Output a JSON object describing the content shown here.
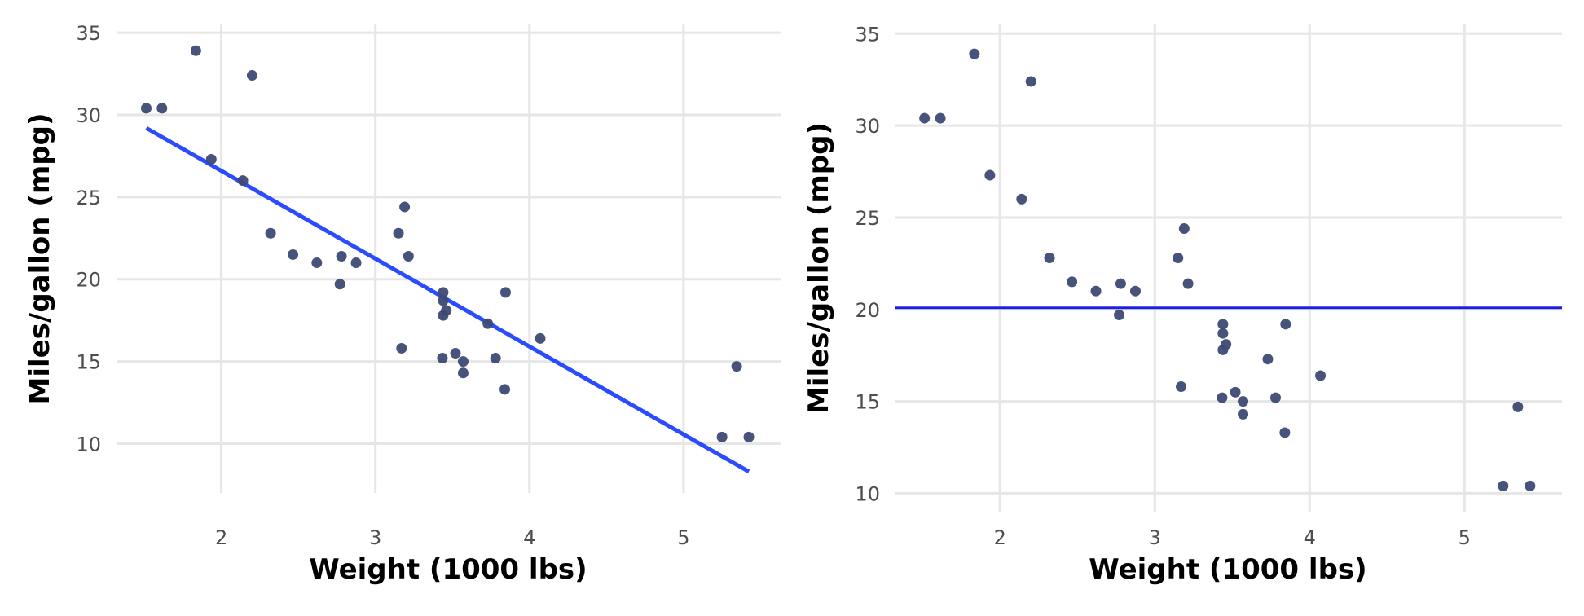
{
  "chart_data": [
    {
      "type": "scatter",
      "title": "",
      "xlabel": "Weight (1000 lbs)",
      "ylabel": "Miles/gallon (mpg)",
      "xlim": [
        1.32,
        5.63
      ],
      "ylim": [
        7.0,
        35.5
      ],
      "x_ticks": [
        2,
        3,
        4,
        5
      ],
      "y_ticks": [
        10,
        15,
        20,
        25,
        30,
        35
      ],
      "grid": true,
      "point_color": "#3d4a73",
      "points": [
        [
          1.513,
          30.4
        ],
        [
          1.615,
          30.4
        ],
        [
          1.835,
          33.9
        ],
        [
          1.935,
          27.3
        ],
        [
          2.14,
          26.0
        ],
        [
          2.2,
          32.4
        ],
        [
          2.32,
          22.8
        ],
        [
          2.465,
          21.5
        ],
        [
          2.62,
          21.0
        ],
        [
          2.77,
          19.7
        ],
        [
          2.78,
          21.4
        ],
        [
          2.875,
          21.0
        ],
        [
          3.15,
          22.8
        ],
        [
          3.17,
          15.8
        ],
        [
          3.19,
          24.4
        ],
        [
          3.215,
          21.4
        ],
        [
          3.435,
          15.2
        ],
        [
          3.44,
          18.7
        ],
        [
          3.44,
          19.2
        ],
        [
          3.44,
          17.8
        ],
        [
          3.46,
          18.1
        ],
        [
          3.52,
          15.5
        ],
        [
          3.57,
          15.0
        ],
        [
          3.57,
          14.3
        ],
        [
          3.73,
          17.3
        ],
        [
          3.78,
          15.2
        ],
        [
          3.84,
          13.3
        ],
        [
          3.845,
          19.2
        ],
        [
          4.07,
          16.4
        ],
        [
          5.25,
          10.4
        ],
        [
          5.345,
          14.7
        ],
        [
          5.424,
          10.4
        ]
      ],
      "fit": {
        "type": "linear",
        "intercept": 37.285,
        "slope": -5.344,
        "x_range": [
          1.513,
          5.424
        ],
        "color": "#2b4bff"
      }
    },
    {
      "type": "scatter",
      "title": "",
      "xlabel": "Weight (1000 lbs)",
      "ylabel": "Miles/gallon (mpg)",
      "xlim": [
        1.32,
        5.63
      ],
      "ylim": [
        9.0,
        35.5
      ],
      "x_ticks": [
        2,
        3,
        4,
        5
      ],
      "y_ticks": [
        10,
        15,
        20,
        25,
        30,
        35
      ],
      "grid": true,
      "point_color": "#3d4a73",
      "points": [
        [
          1.513,
          30.4
        ],
        [
          1.615,
          30.4
        ],
        [
          1.835,
          33.9
        ],
        [
          1.935,
          27.3
        ],
        [
          2.14,
          26.0
        ],
        [
          2.2,
          32.4
        ],
        [
          2.32,
          22.8
        ],
        [
          2.465,
          21.5
        ],
        [
          2.62,
          21.0
        ],
        [
          2.77,
          19.7
        ],
        [
          2.78,
          21.4
        ],
        [
          2.875,
          21.0
        ],
        [
          3.15,
          22.8
        ],
        [
          3.17,
          15.8
        ],
        [
          3.19,
          24.4
        ],
        [
          3.215,
          21.4
        ],
        [
          3.435,
          15.2
        ],
        [
          3.44,
          18.7
        ],
        [
          3.44,
          19.2
        ],
        [
          3.44,
          17.8
        ],
        [
          3.46,
          18.1
        ],
        [
          3.52,
          15.5
        ],
        [
          3.57,
          15.0
        ],
        [
          3.57,
          14.3
        ],
        [
          3.73,
          17.3
        ],
        [
          3.78,
          15.2
        ],
        [
          3.84,
          13.3
        ],
        [
          3.845,
          19.2
        ],
        [
          4.07,
          16.4
        ],
        [
          5.25,
          10.4
        ],
        [
          5.345,
          14.7
        ],
        [
          5.424,
          10.4
        ]
      ],
      "hline": {
        "y": 20.09,
        "color": "#1f1fe0"
      }
    }
  ]
}
